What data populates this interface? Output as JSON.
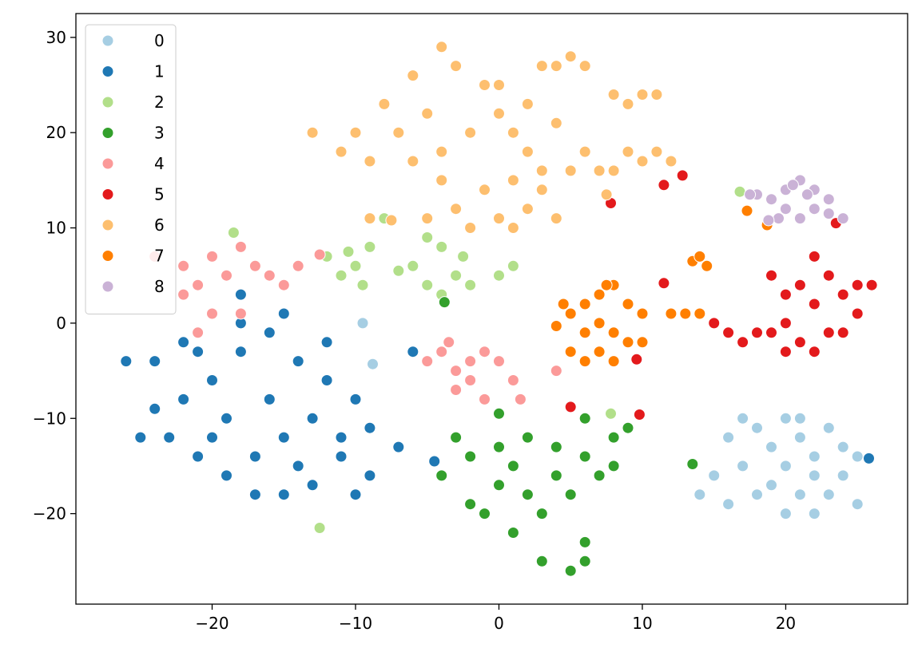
{
  "chart_data": {
    "type": "scatter",
    "title": "",
    "xlabel": "",
    "ylabel": "",
    "xlim": [
      -29.5,
      28.5
    ],
    "ylim": [
      -29.5,
      32.5
    ],
    "xticks": [
      {
        "value": -20,
        "label": "−20"
      },
      {
        "value": -10,
        "label": "−10"
      },
      {
        "value": 0,
        "label": "0"
      },
      {
        "value": 10,
        "label": "10"
      },
      {
        "value": 20,
        "label": "20"
      }
    ],
    "yticks": [
      {
        "value": 30,
        "label": "30"
      },
      {
        "value": 20,
        "label": "20"
      },
      {
        "value": 10,
        "label": "10"
      },
      {
        "value": 0,
        "label": "0"
      },
      {
        "value": -10,
        "label": "−10"
      },
      {
        "value": -20,
        "label": "−20"
      }
    ],
    "grid": false,
    "legend_position": "top-left",
    "series": [
      {
        "name": "0",
        "color": "#a6cee3",
        "points": [
          [
            16,
            -12
          ],
          [
            17,
            -15
          ],
          [
            18,
            -11
          ],
          [
            19,
            -13
          ],
          [
            20,
            -10
          ],
          [
            21,
            -12
          ],
          [
            22,
            -14
          ],
          [
            23,
            -11
          ],
          [
            24,
            -13
          ],
          [
            19,
            -17
          ],
          [
            21,
            -18
          ],
          [
            23,
            -18
          ],
          [
            22,
            -20
          ],
          [
            20,
            -20
          ],
          [
            15,
            -16
          ],
          [
            14,
            -18
          ],
          [
            18,
            -18
          ],
          [
            24,
            -16
          ],
          [
            25,
            -19
          ],
          [
            17,
            -10
          ],
          [
            20,
            -15
          ],
          [
            22,
            -16
          ],
          [
            25,
            -14
          ],
          [
            16,
            -19
          ],
          [
            21,
            -10
          ],
          [
            -9.5,
            0
          ],
          [
            -8.8,
            -4.3
          ]
        ]
      },
      {
        "name": "1",
        "color": "#1f78b4",
        "points": [
          [
            -24,
            -4
          ],
          [
            -22,
            -2
          ],
          [
            -20,
            -6
          ],
          [
            -18,
            -3
          ],
          [
            -16,
            -1
          ],
          [
            -14,
            -4
          ],
          [
            -12,
            -6
          ],
          [
            -10,
            -8
          ],
          [
            -9,
            -11
          ],
          [
            -11,
            -14
          ],
          [
            -13,
            -17
          ],
          [
            -15,
            -18
          ],
          [
            -17,
            -18
          ],
          [
            -19,
            -16
          ],
          [
            -21,
            -14
          ],
          [
            -23,
            -12
          ],
          [
            -24,
            -9
          ],
          [
            -22,
            -8
          ],
          [
            -19,
            -10
          ],
          [
            -16,
            -8
          ],
          [
            -13,
            -10
          ],
          [
            -15,
            -12
          ],
          [
            -17,
            -14
          ],
          [
            -20,
            -12
          ],
          [
            -14,
            -15
          ],
          [
            -11,
            -12
          ],
          [
            -12,
            -2
          ],
          [
            -15,
            1
          ],
          [
            -18,
            0
          ],
          [
            -21,
            -3
          ],
          [
            -26,
            -4
          ],
          [
            -25,
            -12
          ],
          [
            -7,
            -13
          ],
          [
            -6,
            -3
          ],
          [
            -4.5,
            -14.5
          ],
          [
            -9,
            -16
          ],
          [
            -10,
            -18
          ],
          [
            -18,
            3
          ],
          [
            25.8,
            -14.2
          ]
        ]
      },
      {
        "name": "2",
        "color": "#b2df8a",
        "points": [
          [
            -12,
            7
          ],
          [
            -11,
            5
          ],
          [
            -10,
            6
          ],
          [
            -9.5,
            4
          ],
          [
            -9,
            8
          ],
          [
            -10.5,
            7.5
          ],
          [
            -8,
            11
          ],
          [
            -6,
            6
          ],
          [
            -5,
            4
          ],
          [
            -4,
            3
          ],
          [
            -3,
            5
          ],
          [
            -2.5,
            7
          ],
          [
            -4,
            8
          ],
          [
            -5,
            9
          ],
          [
            -2,
            4
          ],
          [
            0,
            5
          ],
          [
            1,
            6
          ],
          [
            -7,
            5.5
          ],
          [
            -12.5,
            -21.5
          ],
          [
            -18.5,
            9.5
          ],
          [
            16.8,
            13.8
          ],
          [
            7.8,
            -9.5
          ]
        ]
      },
      {
        "name": "3",
        "color": "#33a02c",
        "points": [
          [
            -2,
            -14
          ],
          [
            0,
            -13
          ],
          [
            2,
            -12
          ],
          [
            4,
            -13
          ],
          [
            6,
            -14
          ],
          [
            8,
            -12
          ],
          [
            9,
            -11
          ],
          [
            7,
            -16
          ],
          [
            5,
            -18
          ],
          [
            3,
            -20
          ],
          [
            1,
            -22
          ],
          [
            3,
            -25
          ],
          [
            5,
            -26
          ],
          [
            2,
            -18
          ],
          [
            0,
            -17
          ],
          [
            -2,
            -19
          ],
          [
            -4,
            -16
          ],
          [
            -3,
            -12
          ],
          [
            1,
            -15
          ],
          [
            4,
            -16
          ],
          [
            6,
            -10
          ],
          [
            8,
            -15
          ],
          [
            -1,
            -20
          ],
          [
            6,
            -23
          ],
          [
            6,
            -25
          ],
          [
            0,
            -9.5
          ],
          [
            -3.8,
            2.2
          ],
          [
            13.5,
            -14.8
          ]
        ]
      },
      {
        "name": "4",
        "color": "#fb9a99",
        "points": [
          [
            -24,
            7
          ],
          [
            -22,
            6
          ],
          [
            -21,
            4
          ],
          [
            -20,
            7
          ],
          [
            -19,
            5
          ],
          [
            -18,
            8
          ],
          [
            -17,
            6
          ],
          [
            -16,
            5
          ],
          [
            -15,
            4
          ],
          [
            -14,
            6
          ],
          [
            -20,
            1
          ],
          [
            -18,
            1
          ],
          [
            -22,
            3
          ],
          [
            -21,
            -1
          ],
          [
            -5,
            -4
          ],
          [
            -4,
            -3
          ],
          [
            -3,
            -5
          ],
          [
            -2,
            -4
          ],
          [
            -1,
            -3
          ],
          [
            0,
            -4
          ],
          [
            -3,
            -7
          ],
          [
            -2,
            -6
          ],
          [
            -1,
            -8
          ],
          [
            1,
            -6
          ],
          [
            1.5,
            -8
          ],
          [
            4,
            -5
          ],
          [
            -12.5,
            7.2
          ],
          [
            -3.5,
            -2
          ]
        ]
      },
      {
        "name": "5",
        "color": "#e31a1c",
        "points": [
          [
            19,
            5
          ],
          [
            20,
            3
          ],
          [
            21,
            4
          ],
          [
            22,
            2
          ],
          [
            23,
            5
          ],
          [
            24,
            3
          ],
          [
            25,
            1
          ],
          [
            23,
            -1
          ],
          [
            22,
            -3
          ],
          [
            21,
            -2
          ],
          [
            20,
            0
          ],
          [
            19,
            -1
          ],
          [
            20,
            -3
          ],
          [
            24,
            -1
          ],
          [
            25,
            4
          ],
          [
            26,
            4
          ],
          [
            22,
            7
          ],
          [
            15,
            0
          ],
          [
            16,
            -1
          ],
          [
            17,
            -2
          ],
          [
            18,
            -1
          ],
          [
            11.5,
            14.5
          ],
          [
            12.8,
            15.5
          ],
          [
            7.8,
            12.6
          ],
          [
            9.8,
            -9.6
          ],
          [
            5,
            -8.8
          ],
          [
            23.5,
            10.5
          ],
          [
            11.5,
            4.2
          ],
          [
            9.6,
            -3.8
          ]
        ]
      },
      {
        "name": "6",
        "color": "#fdbf6f",
        "points": [
          [
            -13,
            20
          ],
          [
            -11,
            18
          ],
          [
            -9,
            17
          ],
          [
            -7,
            20
          ],
          [
            -5,
            22
          ],
          [
            -6,
            26
          ],
          [
            -4,
            29
          ],
          [
            -3,
            27
          ],
          [
            -1,
            25
          ],
          [
            0,
            22
          ],
          [
            1,
            20
          ],
          [
            2,
            18
          ],
          [
            3,
            16
          ],
          [
            1,
            15
          ],
          [
            -1,
            14
          ],
          [
            -3,
            12
          ],
          [
            -5,
            11
          ],
          [
            -2,
            10
          ],
          [
            0,
            11
          ],
          [
            2,
            12
          ],
          [
            4,
            11
          ],
          [
            3,
            14
          ],
          [
            5,
            16
          ],
          [
            6,
            18
          ],
          [
            4,
            21
          ],
          [
            2,
            23
          ],
          [
            0,
            25
          ],
          [
            -2,
            20
          ],
          [
            -4,
            18
          ],
          [
            3,
            27
          ],
          [
            4,
            27
          ],
          [
            5,
            28
          ],
          [
            6,
            27
          ],
          [
            8,
            24
          ],
          [
            9,
            23
          ],
          [
            10,
            24
          ],
          [
            11,
            24
          ],
          [
            9,
            18
          ],
          [
            10,
            17
          ],
          [
            11,
            18
          ],
          [
            12,
            17
          ],
          [
            7,
            16
          ],
          [
            7.5,
            13.5
          ],
          [
            -8,
            23
          ],
          [
            -10,
            20
          ],
          [
            -4,
            15
          ],
          [
            -6,
            17
          ],
          [
            1,
            10
          ],
          [
            8,
            16
          ],
          [
            -9,
            11
          ],
          [
            -7.5,
            10.8
          ]
        ]
      },
      {
        "name": "7",
        "color": "#ff7f00",
        "points": [
          [
            4.5,
            2
          ],
          [
            5,
            1
          ],
          [
            6,
            2
          ],
          [
            7,
            3
          ],
          [
            8,
            4
          ],
          [
            9,
            2
          ],
          [
            10,
            1
          ],
          [
            8,
            -1
          ],
          [
            7,
            -3
          ],
          [
            6,
            -4
          ],
          [
            5,
            -3
          ],
          [
            6,
            -1
          ],
          [
            7,
            0
          ],
          [
            9,
            -2
          ],
          [
            8,
            -4
          ],
          [
            10,
            -2
          ],
          [
            12,
            1
          ],
          [
            13,
            1
          ],
          [
            14,
            1
          ],
          [
            13.5,
            6.5
          ],
          [
            14.5,
            6
          ],
          [
            14,
            7
          ],
          [
            7.5,
            4
          ],
          [
            17.3,
            11.8
          ],
          [
            18.7,
            10.3
          ],
          [
            4,
            -0.3
          ]
        ]
      },
      {
        "name": "8",
        "color": "#cab2d6",
        "points": [
          [
            19,
            13
          ],
          [
            20,
            14
          ],
          [
            21,
            15
          ],
          [
            22,
            14
          ],
          [
            23,
            13
          ],
          [
            20,
            12
          ],
          [
            21,
            11
          ],
          [
            22,
            12
          ],
          [
            19.5,
            11
          ],
          [
            23,
            11.5
          ],
          [
            18,
            13.5
          ],
          [
            17.5,
            13.5
          ],
          [
            20.5,
            14.5
          ],
          [
            21.5,
            13.5
          ],
          [
            18.8,
            10.8
          ],
          [
            24,
            11
          ]
        ]
      }
    ]
  }
}
